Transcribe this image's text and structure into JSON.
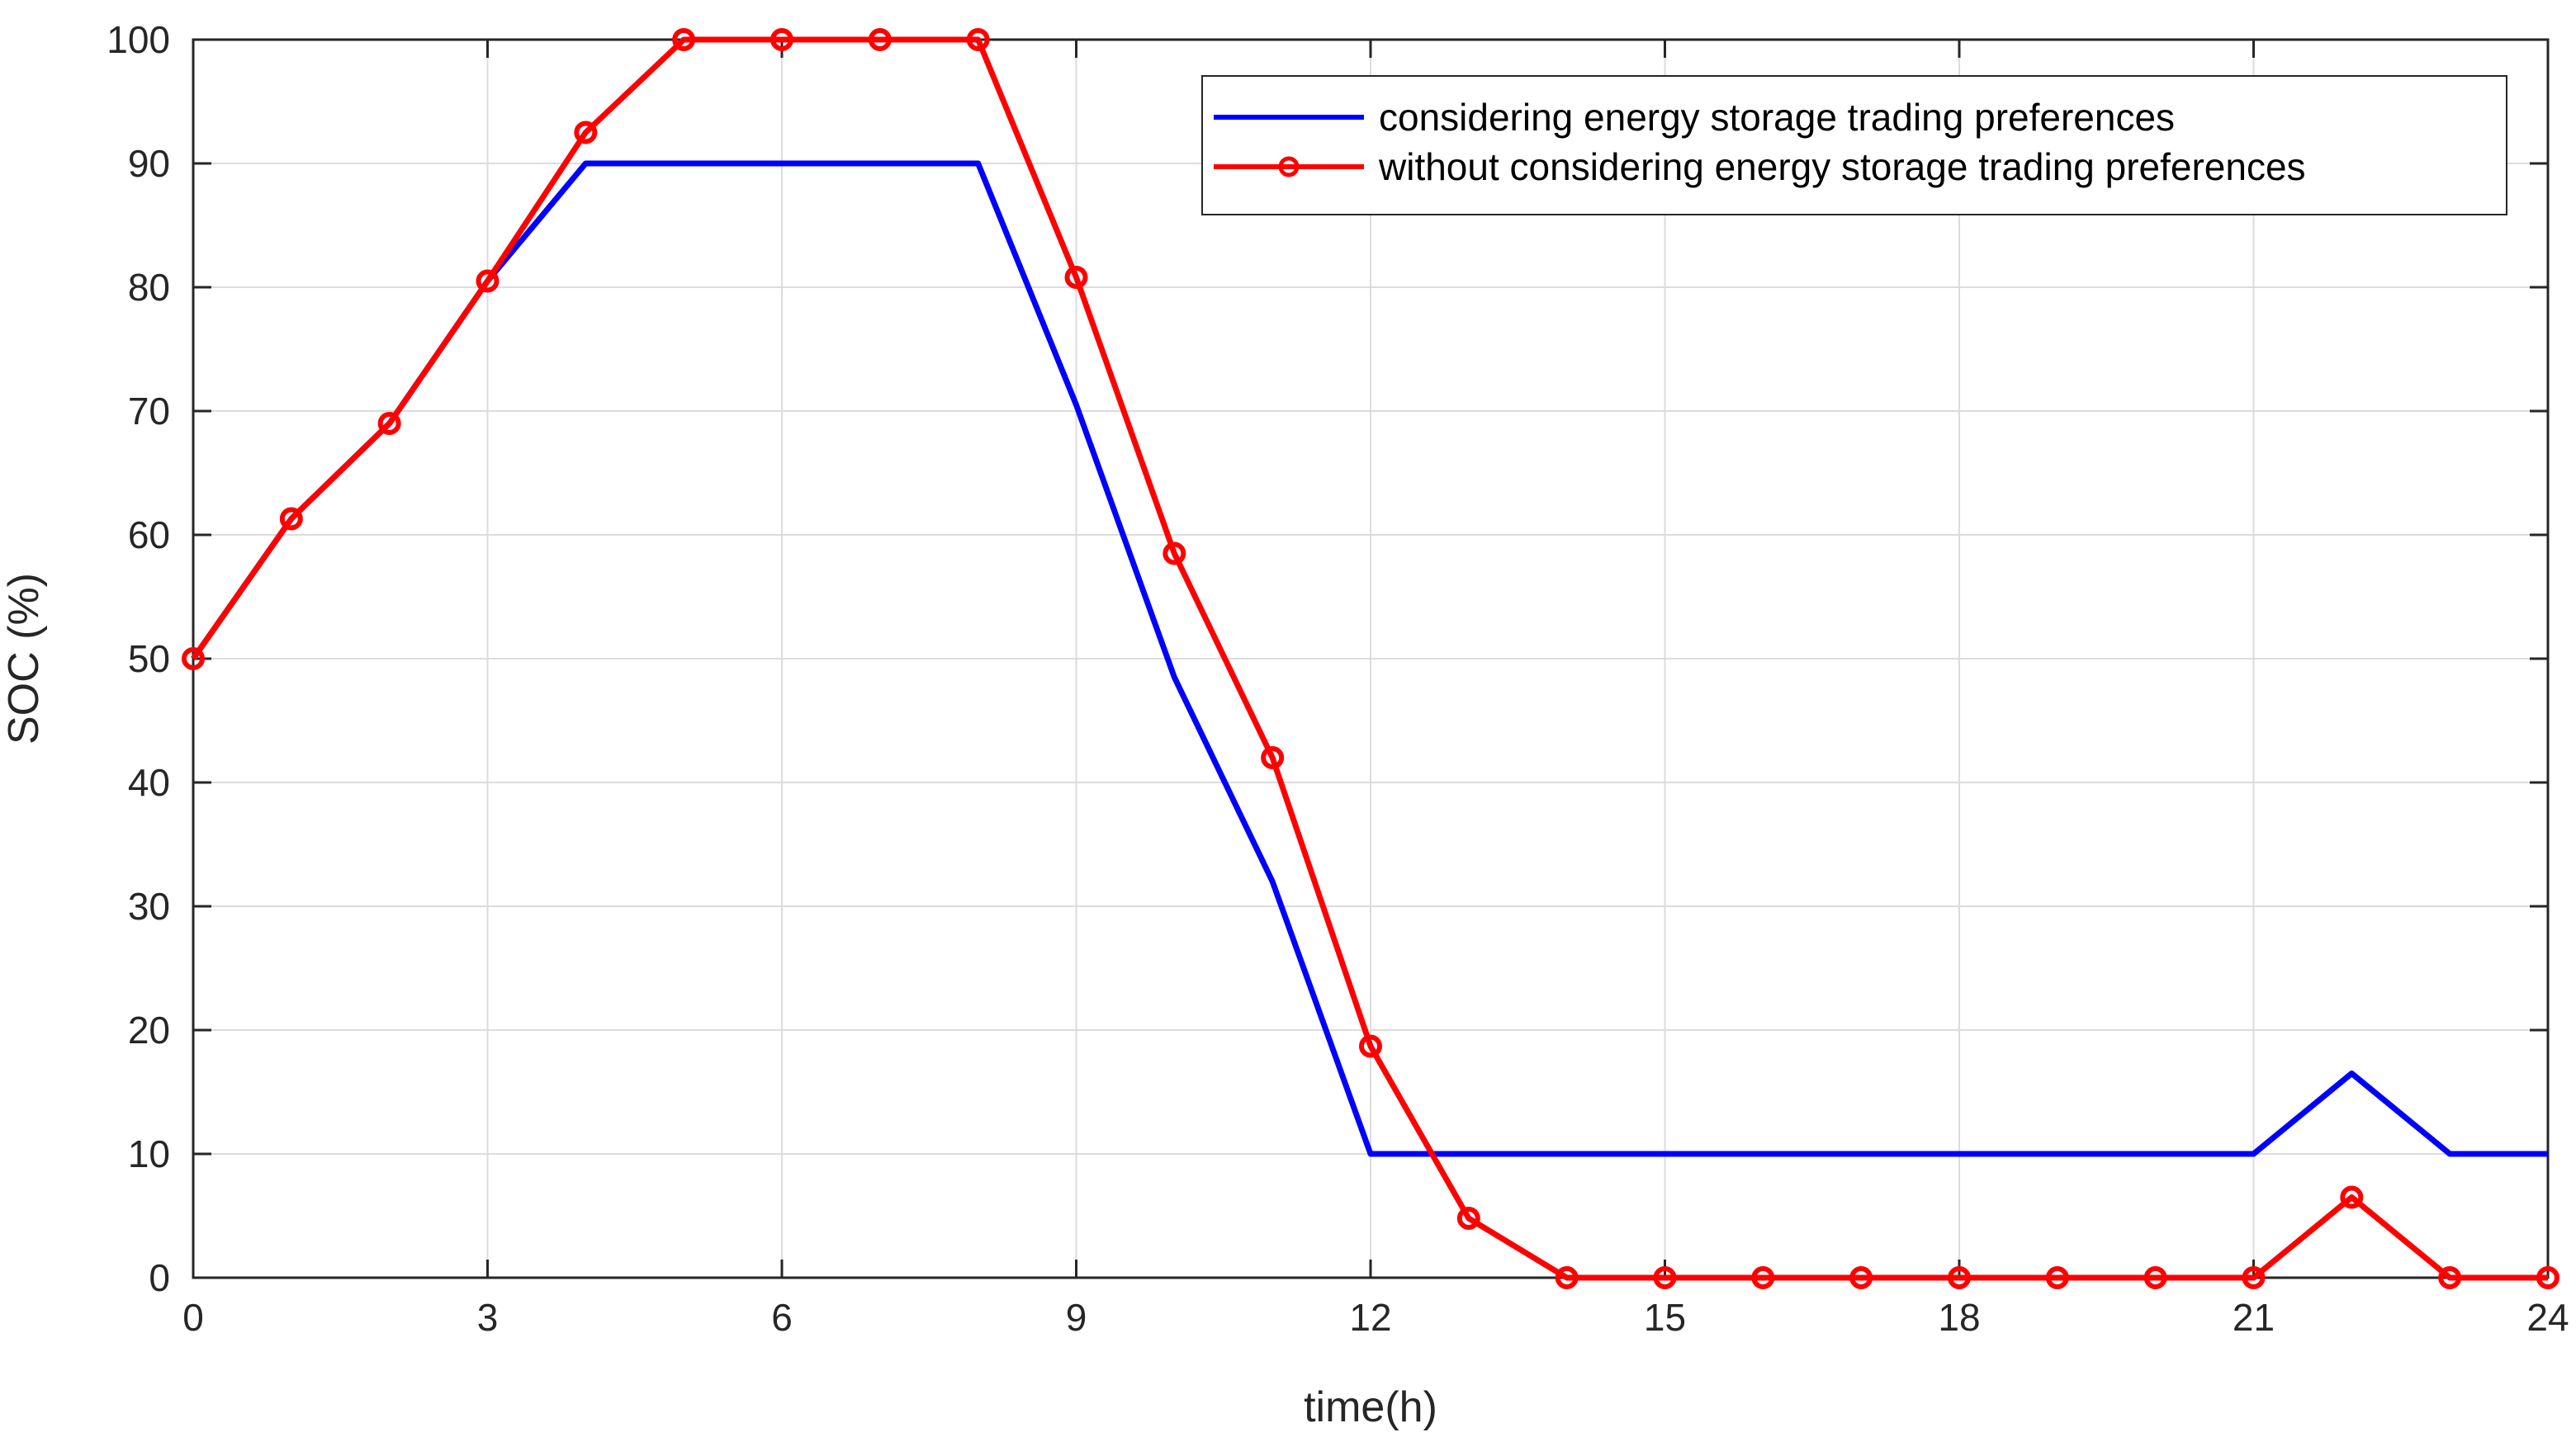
{
  "colors": {
    "series1": "#0000ff",
    "series2": "#ff0000",
    "grid": "#dcdcdc",
    "axis": "#262626"
  },
  "chart_data": {
    "type": "line",
    "title": "",
    "xlabel": "time(h)",
    "ylabel": "SOC (%)",
    "xlim": [
      0,
      24
    ],
    "ylim": [
      0,
      100
    ],
    "xticks": [
      0,
      3,
      6,
      9,
      12,
      15,
      18,
      21,
      24
    ],
    "yticks": [
      0,
      10,
      20,
      30,
      40,
      50,
      60,
      70,
      80,
      90,
      100
    ],
    "grid": true,
    "legend_position": "top-right",
    "x": [
      0,
      1,
      2,
      3,
      4,
      5,
      6,
      7,
      8,
      9,
      10,
      11,
      12,
      13,
      14,
      15,
      16,
      17,
      18,
      19,
      20,
      21,
      22,
      23,
      24
    ],
    "series": [
      {
        "name": "considering energy storage trading preferences",
        "color": "#0000ff",
        "marker": "none",
        "values": [
          50,
          61.3,
          69,
          80.5,
          90,
          90,
          90,
          90,
          90,
          70.5,
          48.5,
          32,
          10,
          10,
          10,
          10,
          10,
          10,
          10,
          10,
          10,
          10,
          16.5,
          10,
          10
        ]
      },
      {
        "name": "without considering energy storage trading preferences",
        "color": "#ff0000",
        "marker": "circle",
        "values": [
          50,
          61.3,
          69,
          80.5,
          92.5,
          100,
          100,
          100,
          100,
          80.8,
          58.5,
          42,
          18.7,
          4.8,
          0,
          0,
          0,
          0,
          0,
          0,
          0,
          0,
          6.5,
          0,
          0
        ]
      }
    ]
  }
}
